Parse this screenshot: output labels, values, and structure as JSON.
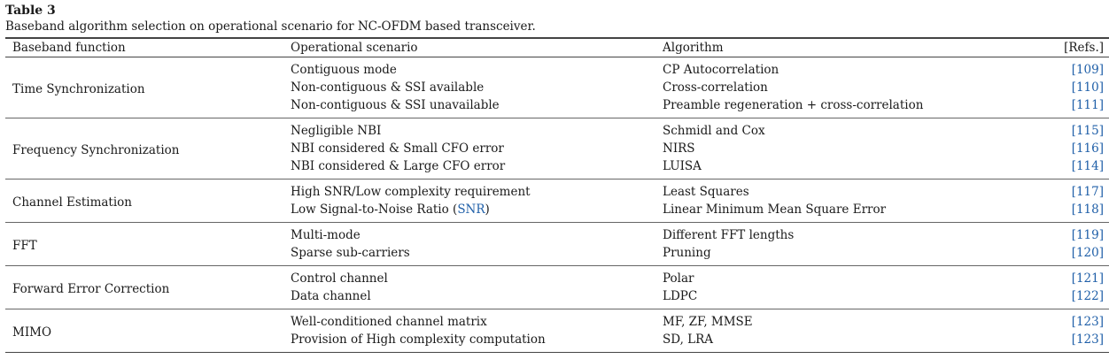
{
  "caption": {
    "label": "Table 3",
    "text": "Baseband algorithm selection on operational scenario for NC-OFDM based transceiver."
  },
  "headers": [
    "Baseband function",
    "Operational scenario",
    "Algorithm",
    "[Refs.]"
  ],
  "groups": [
    {
      "function": "Time Synchronization",
      "rows": [
        {
          "scenario": "Contiguous mode",
          "algorithm": "CP Autocorrelation",
          "ref": "[109]"
        },
        {
          "scenario": "Non-contiguous & SSI available",
          "algorithm": "Cross-correlation",
          "ref": "[110]"
        },
        {
          "scenario": "Non-contiguous & SSI unavailable",
          "algorithm": "Preamble regeneration + cross-correlation",
          "ref": "[111]"
        }
      ]
    },
    {
      "function": "Frequency Synchronization",
      "rows": [
        {
          "scenario": "Negligible NBI",
          "algorithm": "Schmidl and Cox",
          "ref": "[115]"
        },
        {
          "scenario": "NBI considered & Small CFO error",
          "algorithm": "NIRS",
          "ref": "[116]"
        },
        {
          "scenario": "NBI considered & Large CFO error",
          "algorithm": "LUISA",
          "ref": "[114]"
        }
      ]
    },
    {
      "function": "Channel Estimation",
      "rows": [
        {
          "scenario": "High SNR/Low complexity requirement",
          "algorithm": "Least Squares",
          "ref": "[117]"
        },
        {
          "scenario_prefix": "Low Signal-to-Noise Ratio (",
          "scenario_link": "SNR",
          "scenario_suffix": ")",
          "algorithm": "Linear Minimum Mean Square Error",
          "ref": "[118]"
        }
      ]
    },
    {
      "function": "FFT",
      "rows": [
        {
          "scenario": "Multi-mode",
          "algorithm": "Different FFT lengths",
          "ref": "[119]"
        },
        {
          "scenario": "Sparse sub-carriers",
          "algorithm": "Pruning",
          "ref": "[120]"
        }
      ]
    },
    {
      "function": "Forward Error Correction",
      "rows": [
        {
          "scenario": "Control channel",
          "algorithm": "Polar",
          "ref": "[121]"
        },
        {
          "scenario": "Data channel",
          "algorithm": "LDPC",
          "ref": "[122]"
        }
      ]
    },
    {
      "function": "MIMO",
      "rows": [
        {
          "scenario": "Well-conditioned channel matrix",
          "algorithm": "MF, ZF, MMSE",
          "ref": "[123]"
        },
        {
          "scenario": "Provision of High complexity computation",
          "algorithm": "SD, LRA",
          "ref": "[123]"
        }
      ]
    }
  ],
  "colors": {
    "link": "#1f5fa8",
    "rule": "#444444"
  }
}
